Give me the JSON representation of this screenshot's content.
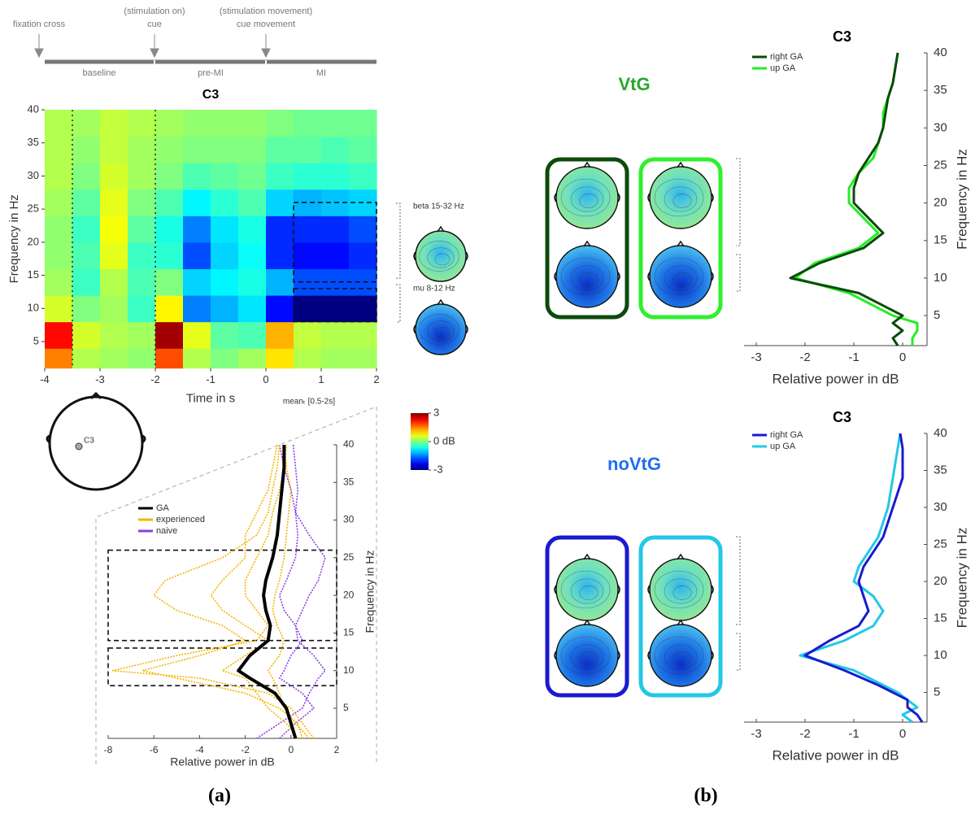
{
  "timeline": {
    "events": [
      [
        "fixation cross"
      ],
      [
        "(stimulation on)",
        "cue"
      ],
      [
        "(stimulation movement)",
        "cue movement"
      ]
    ],
    "phases": [
      "baseline",
      "pre-MI",
      "MI"
    ]
  },
  "topo_labels": [
    "beta 15-32 Hz",
    "mu 8-12 Hz"
  ],
  "electrode_label": "C3",
  "mean_label": "meanₜ [0.5-2s]",
  "group_labels": [
    "VtG",
    "noVtG"
  ],
  "panel_labels": [
    "(a)",
    "(b)"
  ],
  "chart_data": [
    {
      "type": "heatmap",
      "title": "C3",
      "x_label": "Time in s",
      "y_label": "Frequency in Hz",
      "x_bins": [
        -4,
        -3.5,
        -3,
        -2.5,
        -2,
        -1.5,
        -1,
        -0.5,
        0,
        0.5,
        1,
        1.5,
        2
      ],
      "y_bins": [
        1,
        4,
        8,
        12,
        16,
        20,
        24,
        28,
        32,
        36,
        40
      ],
      "values": [
        [
          1.5,
          0.3,
          0.2,
          0.1,
          1.8,
          0.3,
          0,
          0.2,
          0.9,
          0.3,
          0.2,
          0.2
        ],
        [
          2.2,
          0.5,
          0.3,
          0.2,
          2.8,
          0.6,
          -0.2,
          -0.3,
          1.2,
          0.4,
          0.3,
          0.3
        ],
        [
          0.5,
          0,
          0.2,
          -0.4,
          0.8,
          -1.5,
          -1.2,
          -0.9,
          -2.2,
          -3,
          -3,
          -3
        ],
        [
          0.2,
          -0.4,
          0.3,
          -0.3,
          0,
          -1,
          -0.8,
          -0.6,
          -1.2,
          -1.8,
          -1.8,
          -1.8
        ],
        [
          0.1,
          -0.3,
          0.6,
          -0.4,
          -0.5,
          -1.8,
          -1,
          -0.7,
          -2,
          -2.2,
          -2.2,
          -2
        ],
        [
          0.1,
          -0.4,
          0.7,
          -0.2,
          -0.6,
          -1.5,
          -0.9,
          -0.6,
          -2,
          -2,
          -2,
          -1.8
        ],
        [
          0.2,
          -0.2,
          0.6,
          0,
          -0.3,
          -0.8,
          -0.5,
          -0.3,
          -1,
          -1.2,
          -1.1,
          -1
        ],
        [
          0.3,
          0,
          0.5,
          0.2,
          0,
          -0.3,
          -0.2,
          -0.1,
          -0.4,
          -0.5,
          -0.5,
          -0.4
        ],
        [
          0.3,
          0.1,
          0.4,
          0.2,
          0.1,
          0,
          0,
          0,
          -0.2,
          -0.2,
          -0.3,
          -0.2
        ],
        [
          0.3,
          0.2,
          0.4,
          0.3,
          0.2,
          0.1,
          0.1,
          0.1,
          0,
          -0.1,
          -0.1,
          -0.1
        ]
      ],
      "xlim": [
        -4,
        2
      ],
      "xticks": [
        -4,
        -3,
        -2,
        -1,
        0,
        1,
        2
      ],
      "ylim": [
        1,
        40
      ],
      "yticks": [
        5,
        10,
        15,
        20,
        25,
        30,
        35,
        40
      ],
      "zlim": [
        -3,
        3
      ],
      "zticks": [
        3,
        {
          "value": 0,
          "label": "0 dB"
        },
        -3
      ],
      "vlines": [
        -3.5,
        -2
      ],
      "regions": [
        {
          "x": [
            0.5,
            2
          ],
          "y": [
            14,
            26
          ]
        },
        {
          "x": [
            0.5,
            2
          ],
          "y": [
            8,
            13
          ]
        }
      ]
    },
    {
      "type": "line",
      "x_label": "Relative power in dB",
      "y_label": "Frequency in Hz",
      "y": [
        1,
        3,
        5,
        7,
        9,
        10,
        12,
        14,
        16,
        18,
        20,
        22,
        25,
        28,
        31,
        34,
        37,
        40
      ],
      "series": [
        {
          "name": "GA",
          "color": "#000000",
          "values": [
            [
              0.2,
              0,
              -0.2,
              -0.7,
              -1.8,
              -2.3,
              -1.8,
              -1,
              -0.9,
              -1.1,
              -1.2,
              -1.1,
              -0.8,
              -0.6,
              -0.5,
              -0.4,
              -0.3,
              -0.3
            ]
          ]
        },
        {
          "name": "experienced",
          "color": "#f5b400",
          "values": [
            [
              0.5,
              0.3,
              -0.5,
              -2,
              -5,
              -6.5,
              -4,
              -2,
              -3,
              -5,
              -6,
              -5.5,
              -3,
              -1.5,
              -1,
              -0.8,
              -0.6,
              -0.5
            ],
            [
              1,
              0.5,
              0,
              -1,
              -4,
              -7.8,
              -5,
              -1.5,
              -1,
              -1.5,
              -2,
              -2,
              -1.5,
              -1,
              -0.8,
              -0.5,
              -0.3,
              -0.2
            ],
            [
              0.3,
              -0.2,
              -1,
              -1.5,
              -2,
              -3,
              -2,
              -1,
              -2,
              -3,
              -3.5,
              -3,
              -2,
              -2,
              -1.5,
              -1,
              -0.8,
              -0.6
            ],
            [
              0.8,
              0.2,
              -0.3,
              -0.5,
              -0.8,
              -1,
              -0.5,
              -0.3,
              -0.6,
              -0.8,
              -0.7,
              -0.5,
              -0.3,
              -0.2,
              -0.1,
              0,
              -0.2,
              -0.3
            ]
          ]
        },
        {
          "name": "naive",
          "color": "#8a3ee8",
          "values": [
            [
              -1.5,
              -0.5,
              0.5,
              0.8,
              1.2,
              1.5,
              1,
              0.3,
              0.2,
              0.5,
              0.8,
              1.2,
              1.5,
              0.8,
              0.2,
              0.3,
              0.2,
              0.1
            ],
            [
              -0.5,
              0.2,
              1,
              0.5,
              -0.5,
              -0.3,
              0,
              0.5,
              0.2,
              -0.3,
              -0.5,
              -0.2,
              0.2,
              0.3,
              0.2,
              0,
              -0.3,
              -0.5
            ]
          ]
        }
      ],
      "xlim": [
        -8,
        2
      ],
      "xticks": [
        -8,
        -6,
        -4,
        -2,
        0,
        2
      ],
      "ylim": [
        1,
        40
      ],
      "yticks": [
        5,
        10,
        15,
        20,
        25,
        30,
        35,
        40
      ],
      "regions": [
        {
          "y": [
            14,
            26
          ]
        },
        {
          "y": [
            8,
            13
          ]
        }
      ],
      "legend": "upper left"
    },
    {
      "type": "line",
      "title": "C3",
      "x_label": "Relative power in dB",
      "y_label": "Frequency in Hz",
      "y": [
        1,
        2,
        3,
        4,
        5,
        6,
        8,
        10,
        12,
        14,
        16,
        18,
        20,
        22,
        24,
        26,
        28,
        30,
        32,
        34,
        36,
        38,
        40
      ],
      "series": [
        {
          "name": "right GA",
          "color": "#0b4a0b",
          "values": [
            -0.1,
            -0.2,
            0,
            -0.2,
            0,
            -0.3,
            -0.9,
            -2.3,
            -1.7,
            -0.8,
            -0.4,
            -0.7,
            -1,
            -1,
            -0.9,
            -0.7,
            -0.5,
            -0.4,
            -0.35,
            -0.3,
            -0.2,
            -0.15,
            -0.1
          ]
        },
        {
          "name": "up GA",
          "color": "#22ee22",
          "values": [
            0.2,
            0.2,
            0.3,
            0.3,
            -0.2,
            -0.5,
            -1.1,
            -2.2,
            -1.8,
            -0.9,
            -0.5,
            -0.8,
            -1.1,
            -1.1,
            -0.9,
            -0.6,
            -0.5,
            -0.4,
            -0.4,
            -0.3,
            -0.2,
            -0.15,
            -0.1
          ]
        }
      ],
      "xlim": [
        -3.25,
        0.5
      ],
      "xticks": [
        -3,
        -2,
        -1,
        0
      ],
      "ylim": [
        1,
        40
      ],
      "yticks": [
        5,
        10,
        15,
        20,
        25,
        30,
        35,
        40
      ],
      "legend": "upper left"
    },
    {
      "type": "line",
      "title": "C3",
      "x_label": "Relative power in dB",
      "y_label": "Frequency in Hz",
      "y": [
        1,
        2,
        3,
        4,
        5,
        6,
        8,
        10,
        12,
        14,
        16,
        18,
        20,
        22,
        24,
        26,
        28,
        30,
        32,
        34,
        36,
        38,
        40
      ],
      "series": [
        {
          "name": "right GA",
          "color": "#1a1ad0",
          "values": [
            0.4,
            0.3,
            0.1,
            0.1,
            -0.2,
            -0.5,
            -1.2,
            -2,
            -1.5,
            -0.9,
            -0.7,
            -0.8,
            -0.9,
            -0.8,
            -0.6,
            -0.4,
            -0.3,
            -0.2,
            -0.1,
            0,
            0,
            0,
            -0.05
          ]
        },
        {
          "name": "up GA",
          "color": "#22c8e6",
          "values": [
            0.2,
            0,
            0.3,
            0.1,
            -0.1,
            -0.4,
            -1,
            -2.1,
            -1.2,
            -0.6,
            -0.4,
            -0.6,
            -1,
            -0.9,
            -0.7,
            -0.5,
            -0.4,
            -0.3,
            -0.25,
            -0.2,
            -0.15,
            -0.1,
            -0.05
          ]
        }
      ],
      "xlim": [
        -3.25,
        0.5
      ],
      "xticks": [
        -3,
        -2,
        -1,
        0
      ],
      "ylim": [
        1,
        40
      ],
      "yticks": [
        5,
        10,
        15,
        20,
        25,
        30,
        35,
        40
      ],
      "legend": "upper left"
    }
  ]
}
